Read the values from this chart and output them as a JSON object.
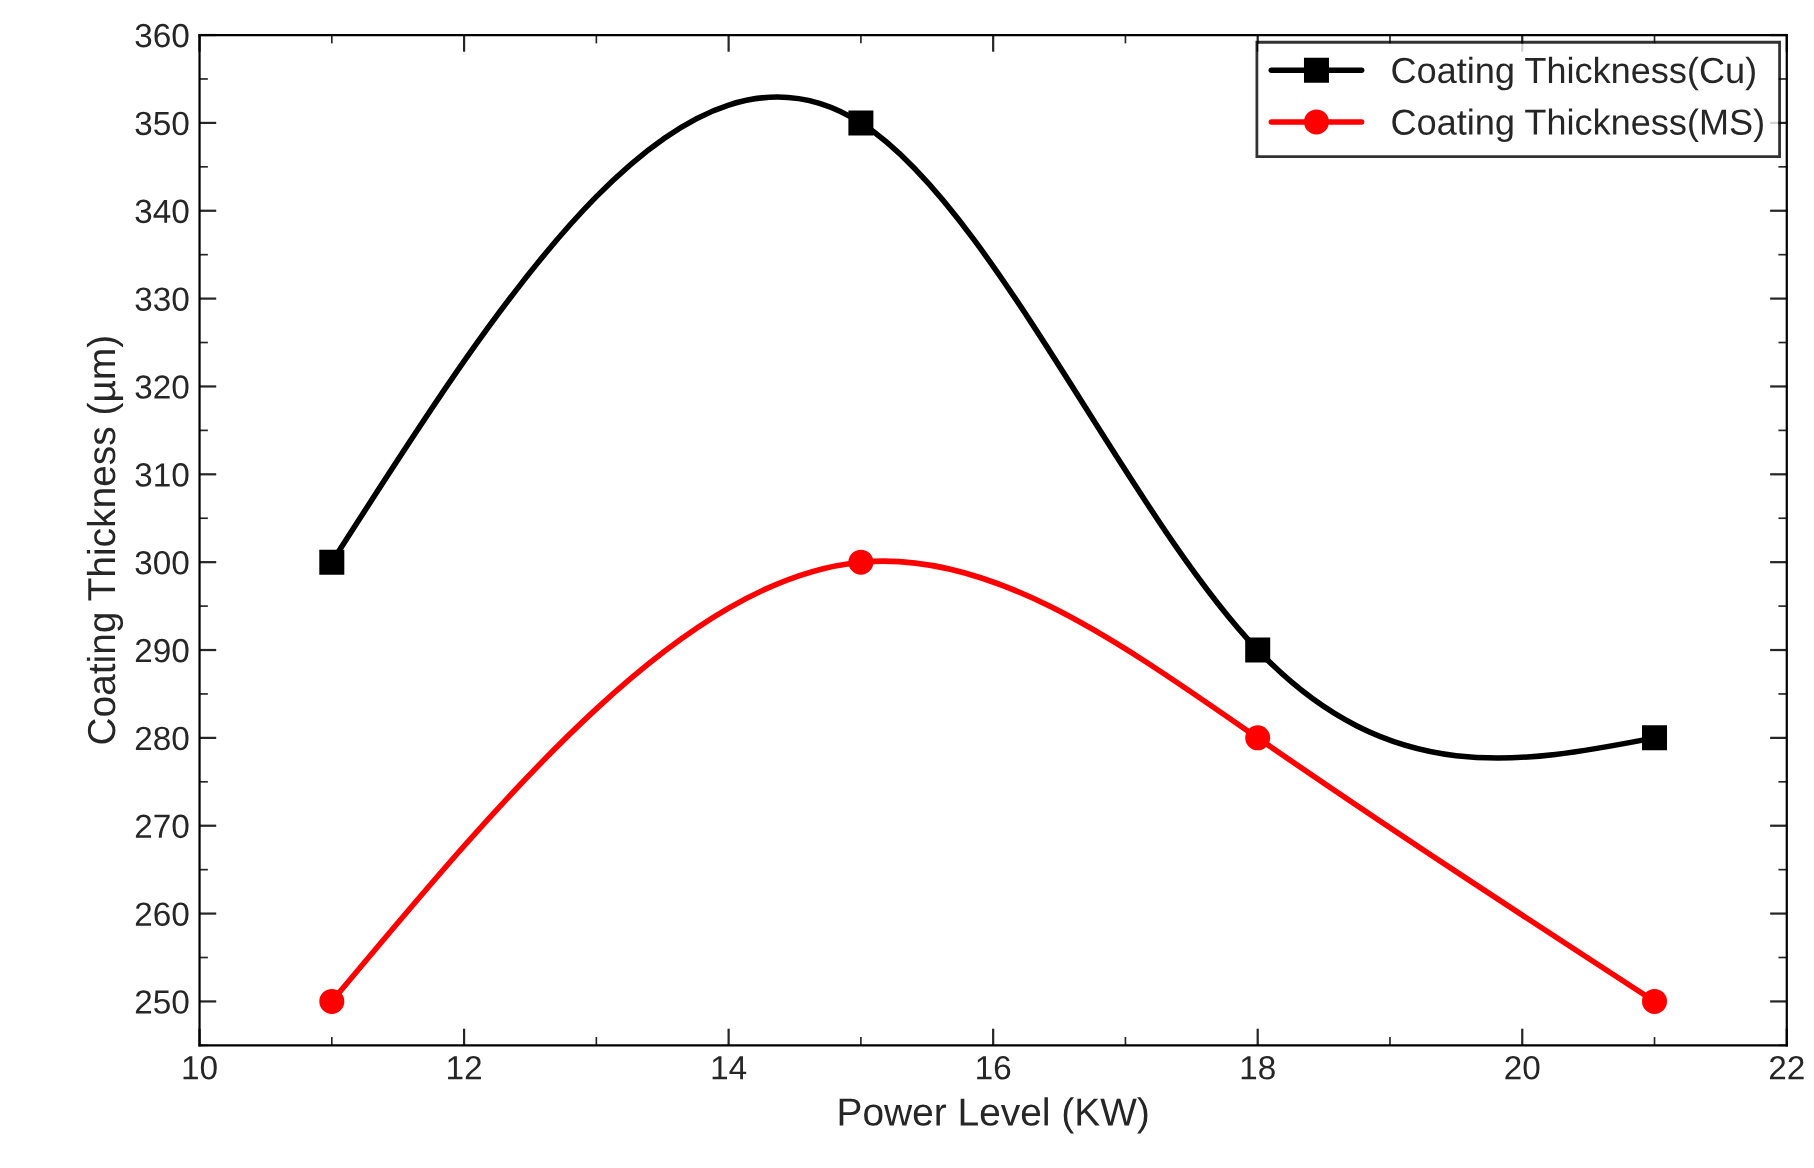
{
  "chart_data": {
    "type": "line",
    "xlabel": "Power Level (KW)",
    "ylabel": "Coating Thickness (µm)",
    "x": [
      11,
      15,
      18,
      21
    ],
    "series": [
      {
        "name": "Coating Thickness(Cu)",
        "color": "#000000",
        "marker": "square",
        "values": [
          300,
          350,
          290,
          280
        ]
      },
      {
        "name": "Coating Thickness(MS)",
        "color": "#ff0000",
        "marker": "circle",
        "values": [
          250,
          300,
          280,
          250
        ]
      }
    ],
    "xlim": [
      10,
      22
    ],
    "xticks": [
      10,
      12,
      14,
      16,
      18,
      20,
      22
    ],
    "ylim": [
      245,
      360
    ],
    "yticks": [
      250,
      260,
      270,
      280,
      290,
      300,
      310,
      320,
      330,
      340,
      350,
      360
    ],
    "grid": false,
    "legend": "top right"
  }
}
